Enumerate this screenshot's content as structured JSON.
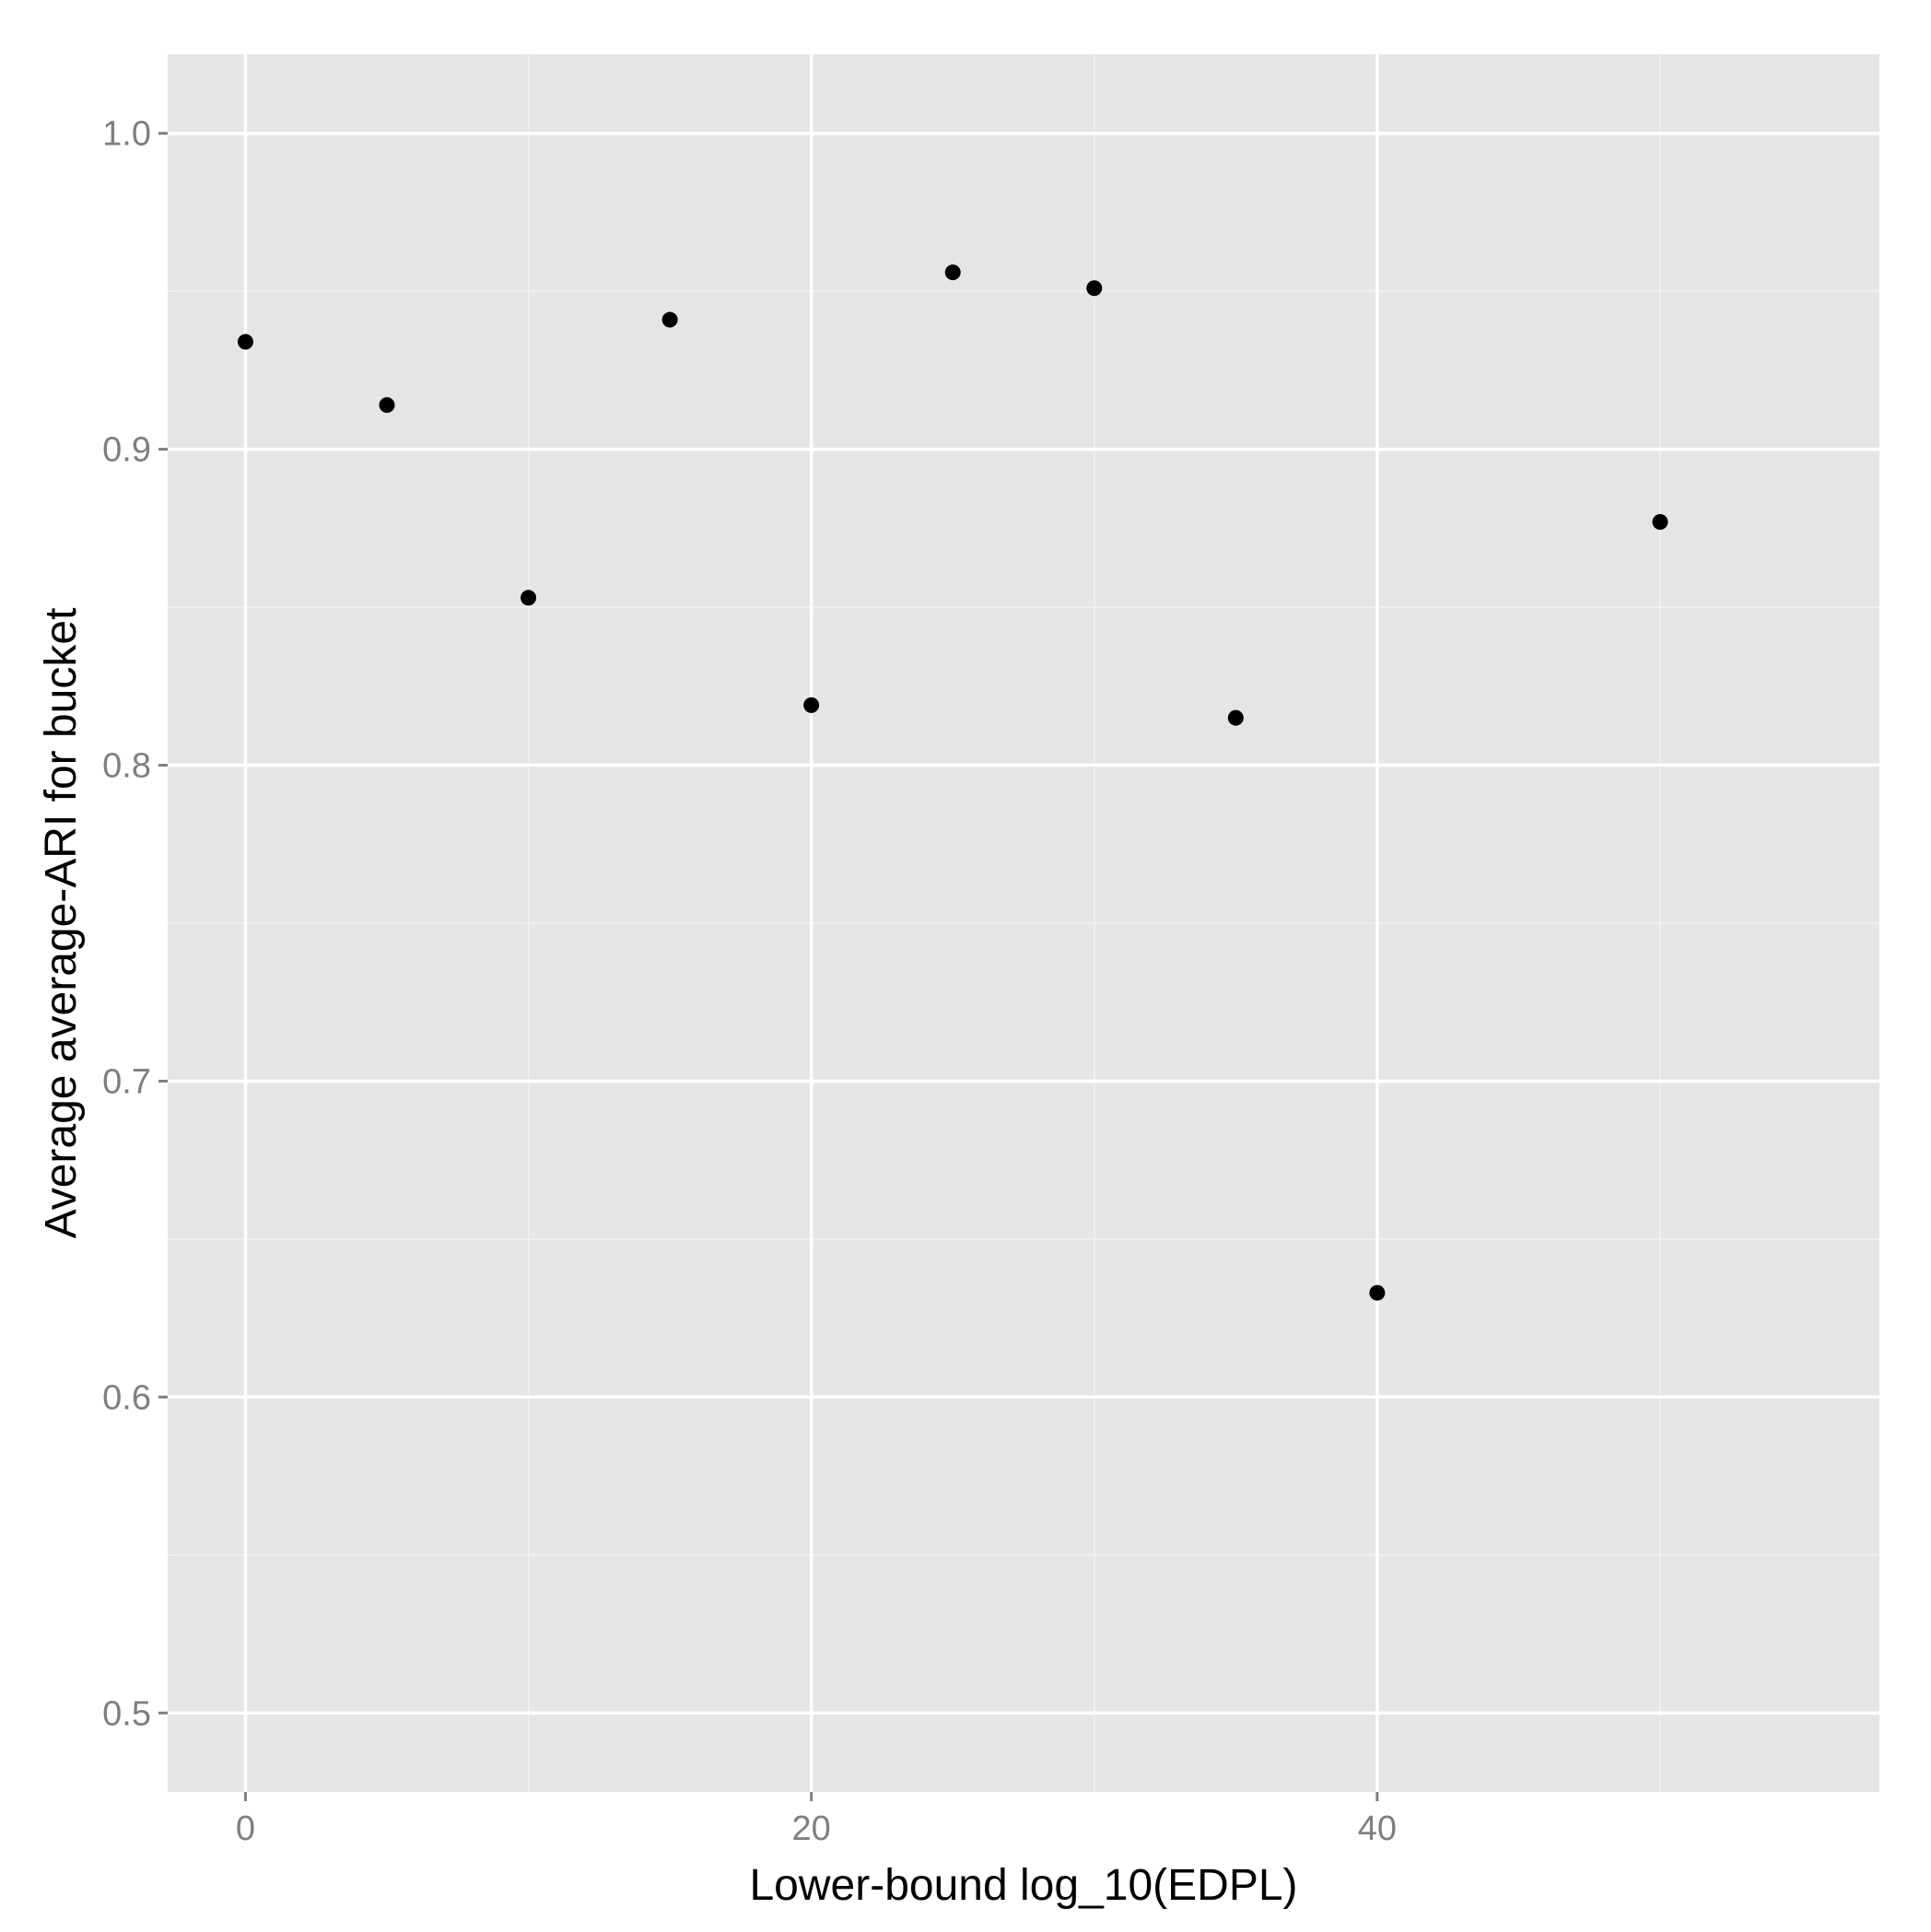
{
  "chart_data": {
    "type": "scatter",
    "title": "",
    "xlabel": "Lower-bound log_10(EDPL)",
    "ylabel": "Average average-ARI for bucket",
    "xlim": [
      -2.75,
      57.75
    ],
    "ylim": [
      0.475,
      1.025
    ],
    "x_ticks": [
      0,
      20,
      40
    ],
    "x_tick_labels": [
      "0",
      "20",
      "40"
    ],
    "x_minor_ticks": [
      10,
      30,
      50
    ],
    "y_ticks": [
      0.5,
      0.6,
      0.7,
      0.8,
      0.9,
      1.0
    ],
    "y_tick_labels": [
      "0.5",
      "0.6",
      "0.7",
      "0.8",
      "0.9",
      "1.0"
    ],
    "y_minor_ticks": [
      0.55,
      0.65,
      0.75,
      0.85,
      0.95
    ],
    "grid": true,
    "points": [
      {
        "x": 0,
        "y": 0.934
      },
      {
        "x": 5,
        "y": 0.914
      },
      {
        "x": 10,
        "y": 0.853
      },
      {
        "x": 15,
        "y": 0.941
      },
      {
        "x": 20,
        "y": 0.819
      },
      {
        "x": 25,
        "y": 0.956
      },
      {
        "x": 30,
        "y": 0.951
      },
      {
        "x": 35,
        "y": 0.815
      },
      {
        "x": 40,
        "y": 0.633
      },
      {
        "x": 50,
        "y": 0.877
      }
    ],
    "colors": {
      "panel": "#e5e5e5",
      "grid_major": "#ffffff",
      "grid_minor": "#f2f2f2",
      "point": "#000000",
      "tick_label": "#7f7f7f",
      "tick_mark": "#7f7f7f"
    }
  }
}
